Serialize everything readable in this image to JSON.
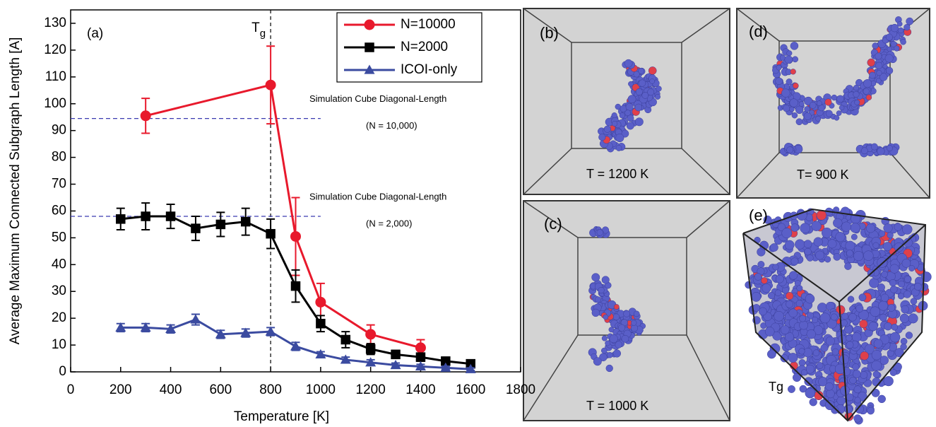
{
  "chart_data": {
    "type": "line",
    "x_label": "Temperature [K]",
    "y_label": "Average Maximum Connected Subgraph Length [A]",
    "panel_label": "(a)",
    "xlim": [
      0,
      1800
    ],
    "xticks": [
      0,
      200,
      400,
      600,
      800,
      1000,
      1200,
      1400,
      1600,
      1800
    ],
    "ylim": [
      0,
      135
    ],
    "yticks": [
      0,
      10,
      20,
      30,
      40,
      50,
      60,
      70,
      80,
      90,
      100,
      110,
      120,
      130
    ],
    "legend": "top-right",
    "vline": {
      "x": 800,
      "label": "T",
      "subscript": "g"
    },
    "hlines": [
      {
        "y": 94.5,
        "xlim": [
          0,
          1000
        ],
        "label": "Simulation Cube Diagonal-Length",
        "sublabel": "(N = 10,000)"
      },
      {
        "y": 58,
        "xlim": [
          0,
          1000
        ],
        "label": "Simulation Cube Diagonal-Length",
        "sublabel": "(N = 2,000)"
      }
    ],
    "series": [
      {
        "name": "N=10000",
        "color": "#e8192c",
        "marker": "circle",
        "x": [
          300,
          800,
          900,
          1000,
          1200,
          1400
        ],
        "values": [
          95.5,
          107,
          50.5,
          26,
          14,
          9
        ],
        "errors": [
          6.5,
          14.5,
          14.5,
          7,
          3.5,
          3
        ]
      },
      {
        "name": "N=2000",
        "color": "#000000",
        "marker": "square",
        "x": [
          200,
          300,
          400,
          500,
          600,
          700,
          800,
          900,
          1000,
          1100,
          1200,
          1300,
          1400,
          1500,
          1600
        ],
        "values": [
          57,
          58,
          58,
          53.5,
          55,
          56,
          51.5,
          32,
          18,
          12,
          8.5,
          6.5,
          5.5,
          4,
          3
        ],
        "errors": [
          4,
          5,
          4.5,
          4.5,
          4.5,
          5,
          5.5,
          6,
          3,
          3,
          2,
          1.5,
          1.5,
          1,
          1
        ]
      },
      {
        "name": "ICOI-only",
        "color": "#3b4ba0",
        "marker": "triangle",
        "x": [
          200,
          300,
          400,
          500,
          600,
          700,
          800,
          900,
          1000,
          1100,
          1200,
          1300,
          1400,
          1500,
          1600
        ],
        "values": [
          16.5,
          16.5,
          16,
          19.5,
          14,
          14.5,
          15,
          9.5,
          6.5,
          4.5,
          3.5,
          2.5,
          2,
          1.5,
          1
        ],
        "errors": [
          1.5,
          1.5,
          1.5,
          2,
          1.5,
          1.5,
          1.5,
          1.5,
          1,
          1,
          1,
          0.8,
          0.8,
          0.6,
          0.5
        ]
      }
    ]
  },
  "panels": [
    {
      "label": "(b)",
      "caption": "T = 1200 K"
    },
    {
      "label": "(d)",
      "caption": "T= 900 K"
    },
    {
      "label": "(c)",
      "caption": "T = 1000 K"
    },
    {
      "label": "(e)",
      "caption": "Tg"
    }
  ]
}
